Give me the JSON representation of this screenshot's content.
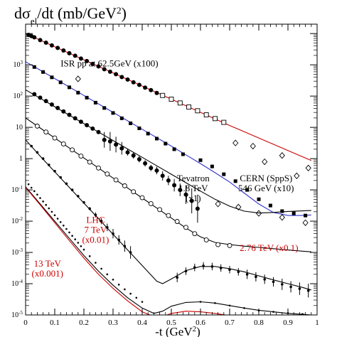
{
  "chart_data": {
    "type": "scatter",
    "title": {
      "main": "dσ",
      "sub": "el",
      "rest": "/dt  (mb/GeV",
      "sup": "2",
      "close": ")"
    },
    "xlabel": {
      "main": "-t  (GeV",
      "sup": "2",
      "close": ")"
    },
    "ylabel": "",
    "xlim": [
      0,
      1.0
    ],
    "ylim_log10": [
      -5,
      4.3
    ],
    "x_scale": "linear",
    "y_scale": "log",
    "grid": false,
    "legend": "none",
    "x_ticks": [
      "0",
      "0.1",
      "0.2",
      "0.3",
      "0.4",
      "0.5",
      "0.6",
      "0.7",
      "0.8",
      "0.9",
      "1"
    ],
    "x_tick_values": [
      0,
      0.1,
      0.2,
      0.3,
      0.4,
      0.5,
      0.6,
      0.7,
      0.8,
      0.9,
      1.0
    ],
    "y_ticks": [
      {
        "exp": -5,
        "base": "10",
        "sup": "-5"
      },
      {
        "exp": -4,
        "base": "10",
        "sup": "-4"
      },
      {
        "exp": -3,
        "base": "10",
        "sup": "-3"
      },
      {
        "exp": -2,
        "base": "10",
        "sup": "-2"
      },
      {
        "exp": -1,
        "base": "10",
        "sup": "-1"
      },
      {
        "exp": 0,
        "base": "1",
        "sup": ""
      },
      {
        "exp": 1,
        "base": "10",
        "sup": ""
      },
      {
        "exp": 2,
        "base": "10",
        "sup": "2"
      },
      {
        "exp": 3,
        "base": "10",
        "sup": "3"
      }
    ],
    "annotations": [
      {
        "id": "isr",
        "lines": [
          "ISR pp at 62.5GeV   (x100)"
        ],
        "x": 0.12,
        "y_log10": 2.95,
        "color": "#000000"
      },
      {
        "id": "tevatron",
        "lines": [
          "Tevatron",
          "1.8 TeV",
          "(x1)"
        ],
        "x": 0.575,
        "y_log10": -0.72,
        "color": "#000000"
      },
      {
        "id": "cern",
        "lines": [
          "CERN (SppS)",
          "546 GeV  (x10)"
        ],
        "x": 0.825,
        "y_log10": -0.72,
        "color": "#000000"
      },
      {
        "id": "lhc7",
        "lines": [
          "LHC",
          "7 TeV",
          "(x0.01)"
        ],
        "x": 0.24,
        "y_log10": -2.05,
        "color": "#cc0000"
      },
      {
        "id": "lhc276",
        "lines": [
          "2.76 TeV (x0.1)"
        ],
        "x": 0.835,
        "y_log10": -2.95,
        "color": "#cc0000"
      },
      {
        "id": "lhc13",
        "lines": [
          "13 TeV",
          "(x0.001)"
        ],
        "x": 0.075,
        "y_log10": -3.45,
        "color": "#cc0000"
      }
    ],
    "colors": {
      "red_curve": "#cc0000",
      "blue_curve": "#3333cc",
      "black_curve": "#000000",
      "axis": "#000000"
    },
    "series": [
      {
        "id": "isr-curve",
        "kind": "line",
        "color": "#cc0000",
        "x": [
          0.0,
          0.05,
          0.1,
          0.15,
          0.2,
          0.25,
          0.3,
          0.35,
          0.4,
          0.45,
          0.5,
          0.55,
          0.6,
          0.65,
          0.7,
          0.75,
          0.8,
          0.85,
          0.9,
          0.95,
          0.98
        ],
        "y_log10": [
          4.0,
          3.79,
          3.58,
          3.37,
          3.16,
          2.95,
          2.74,
          2.53,
          2.32,
          2.11,
          1.9,
          1.69,
          1.48,
          1.27,
          1.06,
          0.86,
          0.66,
          0.46,
          0.26,
          0.06,
          -0.06
        ]
      },
      {
        "id": "isr-data",
        "kind": "points",
        "marker": "filled",
        "color": "#000000",
        "x": [
          0.01,
          0.02,
          0.03,
          0.05,
          0.07,
          0.09,
          0.11,
          0.13,
          0.15,
          0.17,
          0.19,
          0.21,
          0.23,
          0.25,
          0.27,
          0.29,
          0.31,
          0.33,
          0.35,
          0.37,
          0.39,
          0.41,
          0.43,
          0.45
        ],
        "y_log10": [
          3.96,
          3.92,
          3.88,
          3.79,
          3.71,
          3.62,
          3.54,
          3.46,
          3.37,
          3.29,
          3.2,
          3.12,
          3.03,
          2.95,
          2.86,
          2.78,
          2.7,
          2.61,
          2.53,
          2.44,
          2.36,
          2.27,
          2.19,
          2.1
        ]
      },
      {
        "id": "isr-data-open",
        "kind": "points",
        "marker": "open-square",
        "color": "#000000",
        "x": [
          0.47,
          0.5,
          0.53,
          0.56,
          0.59,
          0.62,
          0.65,
          0.68
        ],
        "y_log10": [
          2.02,
          1.9,
          1.78,
          1.65,
          1.53,
          1.4,
          1.28,
          1.16
        ]
      },
      {
        "id": "isr-data-diamond",
        "kind": "points",
        "marker": "open-diamond",
        "color": "#000000",
        "x": [
          0.18,
          0.72,
          0.78,
          0.82,
          0.88,
          0.93,
          0.97
        ],
        "y_log10": [
          2.55,
          0.5,
          0.4,
          -0.1,
          0.1,
          -0.55,
          -0.3
        ]
      },
      {
        "id": "cern-curve",
        "kind": "line",
        "color": "#3333cc",
        "x": [
          0.0,
          0.05,
          0.1,
          0.15,
          0.2,
          0.25,
          0.3,
          0.35,
          0.4,
          0.45,
          0.5,
          0.55,
          0.6,
          0.65,
          0.7,
          0.75,
          0.8,
          0.85,
          0.9,
          0.95,
          0.98
        ],
        "y_log10": [
          3.1,
          2.83,
          2.56,
          2.29,
          2.02,
          1.75,
          1.48,
          1.21,
          0.94,
          0.67,
          0.4,
          0.12,
          -0.16,
          -0.45,
          -0.75,
          -1.1,
          -1.45,
          -1.72,
          -1.82,
          -1.82,
          -1.8
        ]
      },
      {
        "id": "cern-data",
        "kind": "points",
        "marker": "filled-square",
        "color": "#000000",
        "x": [
          0.03,
          0.06,
          0.09,
          0.12,
          0.15,
          0.18,
          0.21,
          0.24,
          0.27,
          0.3,
          0.33,
          0.36,
          0.39,
          0.42,
          0.45,
          0.48,
          0.51,
          0.54,
          0.6,
          0.64,
          0.68,
          0.72,
          0.76,
          0.8,
          0.84,
          0.88,
          0.92,
          0.96
        ],
        "y_log10": [
          2.93,
          2.77,
          2.6,
          2.44,
          2.28,
          2.11,
          1.95,
          1.79,
          1.62,
          1.46,
          1.29,
          1.13,
          0.97,
          0.8,
          0.64,
          0.48,
          0.3,
          0.14,
          -0.05,
          -0.25,
          -0.5,
          -0.72,
          -1.0,
          -1.3,
          -1.5,
          -1.68,
          -1.75,
          -1.82
        ]
      },
      {
        "id": "cern-data-open",
        "kind": "points",
        "marker": "open-diamond",
        "color": "#000000",
        "x": [
          0.66,
          0.73,
          0.8,
          0.88,
          0.96
        ],
        "y_log10": [
          -1.45,
          -1.55,
          -1.75,
          -1.88,
          -2.05
        ]
      },
      {
        "id": "tev-curve",
        "kind": "line",
        "color": "#000000",
        "x": [
          0.0,
          0.05,
          0.1,
          0.15,
          0.2,
          0.25,
          0.3,
          0.35,
          0.4,
          0.45,
          0.5,
          0.55,
          0.6,
          0.65,
          0.7,
          0.75,
          0.8,
          0.85,
          0.9,
          0.95,
          0.98
        ],
        "y_log10": [
          2.2,
          1.93,
          1.66,
          1.39,
          1.12,
          0.85,
          0.58,
          0.31,
          0.04,
          -0.23,
          -0.5,
          -0.77,
          -1.04,
          -1.3,
          -1.52,
          -1.68,
          -1.74,
          -1.72,
          -1.69,
          -1.67,
          -1.66
        ]
      },
      {
        "id": "tev-data",
        "kind": "points",
        "marker": "filled",
        "color": "#000000",
        "errorbars": true,
        "x": [
          0.03,
          0.05,
          0.07,
          0.09,
          0.11,
          0.13,
          0.15,
          0.17,
          0.19,
          0.21,
          0.23,
          0.25,
          0.27,
          0.29,
          0.31,
          0.33,
          0.35,
          0.37,
          0.39,
          0.41,
          0.43,
          0.45,
          0.47,
          0.49,
          0.51,
          0.53,
          0.55,
          0.57,
          0.59
        ],
        "y_log10": [
          2.06,
          1.95,
          1.84,
          1.73,
          1.62,
          1.51,
          1.4,
          1.29,
          1.18,
          1.07,
          0.96,
          0.85,
          0.6,
          0.55,
          0.45,
          0.33,
          0.2,
          0.1,
          -0.02,
          -0.15,
          -0.3,
          -0.38,
          -0.55,
          -0.7,
          -0.85,
          -1.0,
          -1.15,
          -1.35,
          -1.6
        ],
        "err_log10": [
          0,
          0,
          0,
          0,
          0,
          0,
          0,
          0,
          0,
          0,
          0,
          0,
          0.25,
          0.3,
          0.25,
          0.2,
          0.1,
          0.1,
          0.1,
          0.1,
          0.1,
          0.12,
          0.15,
          0.15,
          0.2,
          0.2,
          0.3,
          0.4,
          0.45
        ]
      },
      {
        "id": "lhc276-curve",
        "kind": "line",
        "color": "#000000",
        "x": [
          0.0,
          0.05,
          0.1,
          0.15,
          0.2,
          0.25,
          0.3,
          0.35,
          0.4,
          0.45,
          0.5,
          0.55,
          0.6,
          0.65,
          0.7,
          0.75,
          0.8,
          0.85,
          0.9,
          0.95,
          0.98
        ],
        "y_log10": [
          1.3,
          0.98,
          0.66,
          0.34,
          0.02,
          -0.3,
          -0.62,
          -0.94,
          -1.26,
          -1.58,
          -1.9,
          -2.22,
          -2.5,
          -2.68,
          -2.75,
          -2.8,
          -2.84,
          -2.88,
          -2.92,
          -2.96,
          -2.98
        ]
      },
      {
        "id": "lhc276-data",
        "kind": "points",
        "marker": "open",
        "color": "#000000",
        "x": [
          0.04,
          0.07,
          0.1,
          0.13,
          0.16,
          0.19,
          0.22,
          0.25,
          0.28,
          0.31,
          0.34,
          0.37,
          0.4,
          0.43,
          0.46,
          0.49,
          0.52,
          0.55,
          0.58,
          0.62,
          0.66,
          0.7
        ],
        "y_log10": [
          1.04,
          0.85,
          0.66,
          0.47,
          0.28,
          0.08,
          -0.11,
          -0.3,
          -0.49,
          -0.68,
          -0.87,
          -1.06,
          -1.25,
          -1.44,
          -1.63,
          -1.82,
          -2.01,
          -2.2,
          -2.4,
          -2.6,
          -2.75,
          -2.78
        ]
      },
      {
        "id": "lhc7-curve",
        "kind": "line",
        "color": "#000000",
        "x": [
          0.0,
          0.05,
          0.1,
          0.15,
          0.2,
          0.25,
          0.3,
          0.35,
          0.4,
          0.45,
          0.47,
          0.5,
          0.55,
          0.6,
          0.65,
          0.7,
          0.75,
          0.8,
          0.85,
          0.9,
          0.95,
          0.98
        ],
        "y_log10": [
          0.6,
          0.08,
          -0.42,
          -0.92,
          -1.42,
          -1.92,
          -2.42,
          -2.92,
          -3.42,
          -3.92,
          -4.0,
          -3.85,
          -3.58,
          -3.45,
          -3.45,
          -3.52,
          -3.62,
          -3.75,
          -3.88,
          -4.0,
          -4.12,
          -4.2
        ]
      },
      {
        "id": "lhc7-data",
        "kind": "points",
        "marker": "filled-small",
        "color": "#000000",
        "errorbars": true,
        "x": [
          0.02,
          0.04,
          0.06,
          0.08,
          0.1,
          0.12,
          0.14,
          0.16,
          0.18,
          0.2,
          0.22,
          0.24,
          0.26,
          0.28,
          0.3,
          0.32,
          0.34,
          0.36,
          0.52,
          0.55,
          0.58,
          0.61,
          0.64,
          0.67,
          0.7,
          0.73,
          0.76,
          0.79,
          0.82,
          0.85,
          0.88,
          0.91,
          0.94,
          0.97
        ],
        "y_log10": [
          0.4,
          0.2,
          0.0,
          -0.2,
          -0.4,
          -0.6,
          -0.8,
          -1.0,
          -1.2,
          -1.4,
          -1.6,
          -1.8,
          -2.0,
          -2.2,
          -2.4,
          -2.6,
          -2.8,
          -3.0,
          -3.8,
          -3.6,
          -3.48,
          -3.43,
          -3.45,
          -3.5,
          -3.55,
          -3.62,
          -3.7,
          -3.78,
          -3.86,
          -3.94,
          -4.02,
          -4.1,
          -4.16,
          -4.22
        ],
        "err_log10": [
          0,
          0,
          0,
          0,
          0,
          0,
          0,
          0,
          0,
          0,
          0.05,
          0.08,
          0.1,
          0.12,
          0.15,
          0.15,
          0.18,
          0.2,
          0.15,
          0.12,
          0.12,
          0.12,
          0.12,
          0.12,
          0.12,
          0.12,
          0.15,
          0.15,
          0.15,
          0.15,
          0.18,
          0.18,
          0.2,
          0.22
        ]
      },
      {
        "id": "lhc13-curve-black",
        "kind": "line",
        "color": "#000000",
        "x": [
          0.0,
          0.05,
          0.1,
          0.15,
          0.2,
          0.25,
          0.3,
          0.35,
          0.4,
          0.44,
          0.47,
          0.5,
          0.55,
          0.6,
          0.65,
          0.7,
          0.75,
          0.8,
          0.85,
          0.9,
          0.95,
          0.98
        ],
        "y_log10": [
          -0.9,
          -1.45,
          -2.0,
          -2.55,
          -3.1,
          -3.6,
          -4.05,
          -4.45,
          -4.78,
          -4.95,
          -4.88,
          -4.72,
          -4.6,
          -4.58,
          -4.62,
          -4.7,
          -4.78,
          -4.85,
          -4.9,
          -4.95,
          -4.98,
          -5.0
        ]
      },
      {
        "id": "lhc13-curve-red",
        "kind": "line",
        "color": "#cc0000",
        "x": [
          0.0,
          0.05,
          0.1,
          0.15,
          0.2,
          0.25,
          0.3,
          0.35,
          0.4,
          0.44,
          0.47,
          0.5,
          0.55,
          0.6,
          0.65,
          0.7,
          0.75,
          0.8,
          0.85,
          0.9,
          0.95
        ],
        "y_log10": [
          -0.92,
          -1.48,
          -2.05,
          -2.62,
          -3.18,
          -3.7,
          -4.15,
          -4.55,
          -4.9,
          -5.05,
          -5.05,
          -4.95,
          -4.88,
          -4.9,
          -4.95,
          -5.02,
          -5.08,
          -5.12,
          -5.15,
          -5.18,
          -5.2
        ]
      },
      {
        "id": "lhc13-data",
        "kind": "points",
        "marker": "tiny",
        "color": "#000000",
        "x": [
          0.01,
          0.02,
          0.03,
          0.04,
          0.05,
          0.06,
          0.07,
          0.08,
          0.09,
          0.1,
          0.11,
          0.12,
          0.13,
          0.14,
          0.15,
          0.16,
          0.17,
          0.18,
          0.19,
          0.2,
          0.22,
          0.24,
          0.26,
          0.28,
          0.3,
          0.32,
          0.34,
          0.36,
          0.38,
          0.4,
          0.6,
          0.65,
          0.7,
          0.75,
          0.8,
          0.85,
          0.9,
          0.95
        ],
        "y_log10": [
          -0.82,
          -0.93,
          -1.04,
          -1.15,
          -1.26,
          -1.37,
          -1.48,
          -1.59,
          -1.7,
          -1.81,
          -1.92,
          -2.03,
          -2.14,
          -2.25,
          -2.36,
          -2.47,
          -2.58,
          -2.69,
          -2.8,
          -2.91,
          -3.12,
          -3.33,
          -3.52,
          -3.7,
          -3.87,
          -4.03,
          -4.18,
          -4.32,
          -4.45,
          -4.58,
          -4.58,
          -4.62,
          -4.7,
          -4.78,
          -4.86,
          -4.9,
          -4.94,
          -4.97
        ]
      }
    ]
  }
}
